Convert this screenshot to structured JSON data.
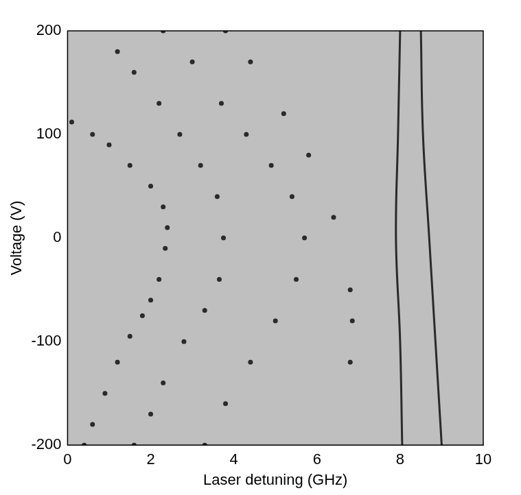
{
  "chart_data": {
    "type": "scatter",
    "x_label": "Laser detuning (GHz)",
    "y_label": "Voltage (V)",
    "xlim": [
      0,
      10
    ],
    "xticks": [
      0,
      2,
      4,
      6,
      8,
      10
    ],
    "ylim": [
      -200,
      200
    ],
    "yticks": [
      -200,
      -100,
      0,
      100,
      200
    ],
    "grid": false,
    "color": "#2a2a2a",
    "series": [
      {
        "marker": "circle",
        "line_style": "none",
        "x": [
          0.1,
          0.6,
          1.0,
          1.5,
          2.0,
          2.3,
          2.4,
          2.35,
          2.2,
          2.0,
          1.8,
          1.5,
          1.2,
          0.9,
          0.6,
          0.4
        ],
        "values": [
          112,
          100,
          90,
          70,
          50,
          30,
          10,
          -10,
          -40,
          -60,
          -75,
          -95,
          -120,
          -150,
          -180,
          -200
        ]
      },
      {
        "marker": "circle",
        "line_style": "none",
        "x": [
          1.2,
          1.6,
          2.2,
          2.7,
          3.2,
          3.6,
          3.75,
          3.65,
          3.3,
          2.8,
          2.3,
          2.0,
          1.6
        ],
        "values": [
          180,
          160,
          130,
          100,
          70,
          40,
          0,
          -40,
          -70,
          -100,
          -140,
          -170,
          -200
        ]
      },
      {
        "marker": "circle",
        "line_style": "none",
        "x": [
          2.3,
          3.0,
          3.7,
          4.3,
          4.9,
          5.4,
          5.7,
          5.5,
          5.0,
          4.4,
          3.8,
          3.3
        ],
        "values": [
          200,
          170,
          130,
          100,
          70,
          40,
          0,
          -40,
          -80,
          -120,
          -160,
          -200
        ]
      },
      {
        "marker": "circle",
        "line_style": "none",
        "x": [
          3.8,
          4.4,
          5.2,
          5.8,
          6.4,
          6.8,
          6.85,
          6.8
        ],
        "values": [
          200,
          170,
          120,
          80,
          20,
          -50,
          -80,
          -120
        ]
      },
      {
        "marker": "none",
        "line_style": "solid",
        "x": [
          8.0,
          7.95,
          7.9,
          8.0,
          8.05
        ],
        "values": [
          200,
          100,
          0,
          -100,
          -200
        ]
      },
      {
        "marker": "none",
        "line_style": "solid",
        "x": [
          8.5,
          8.55,
          8.7,
          8.85,
          9.0
        ],
        "values": [
          200,
          100,
          0,
          -100,
          -200
        ]
      }
    ]
  }
}
